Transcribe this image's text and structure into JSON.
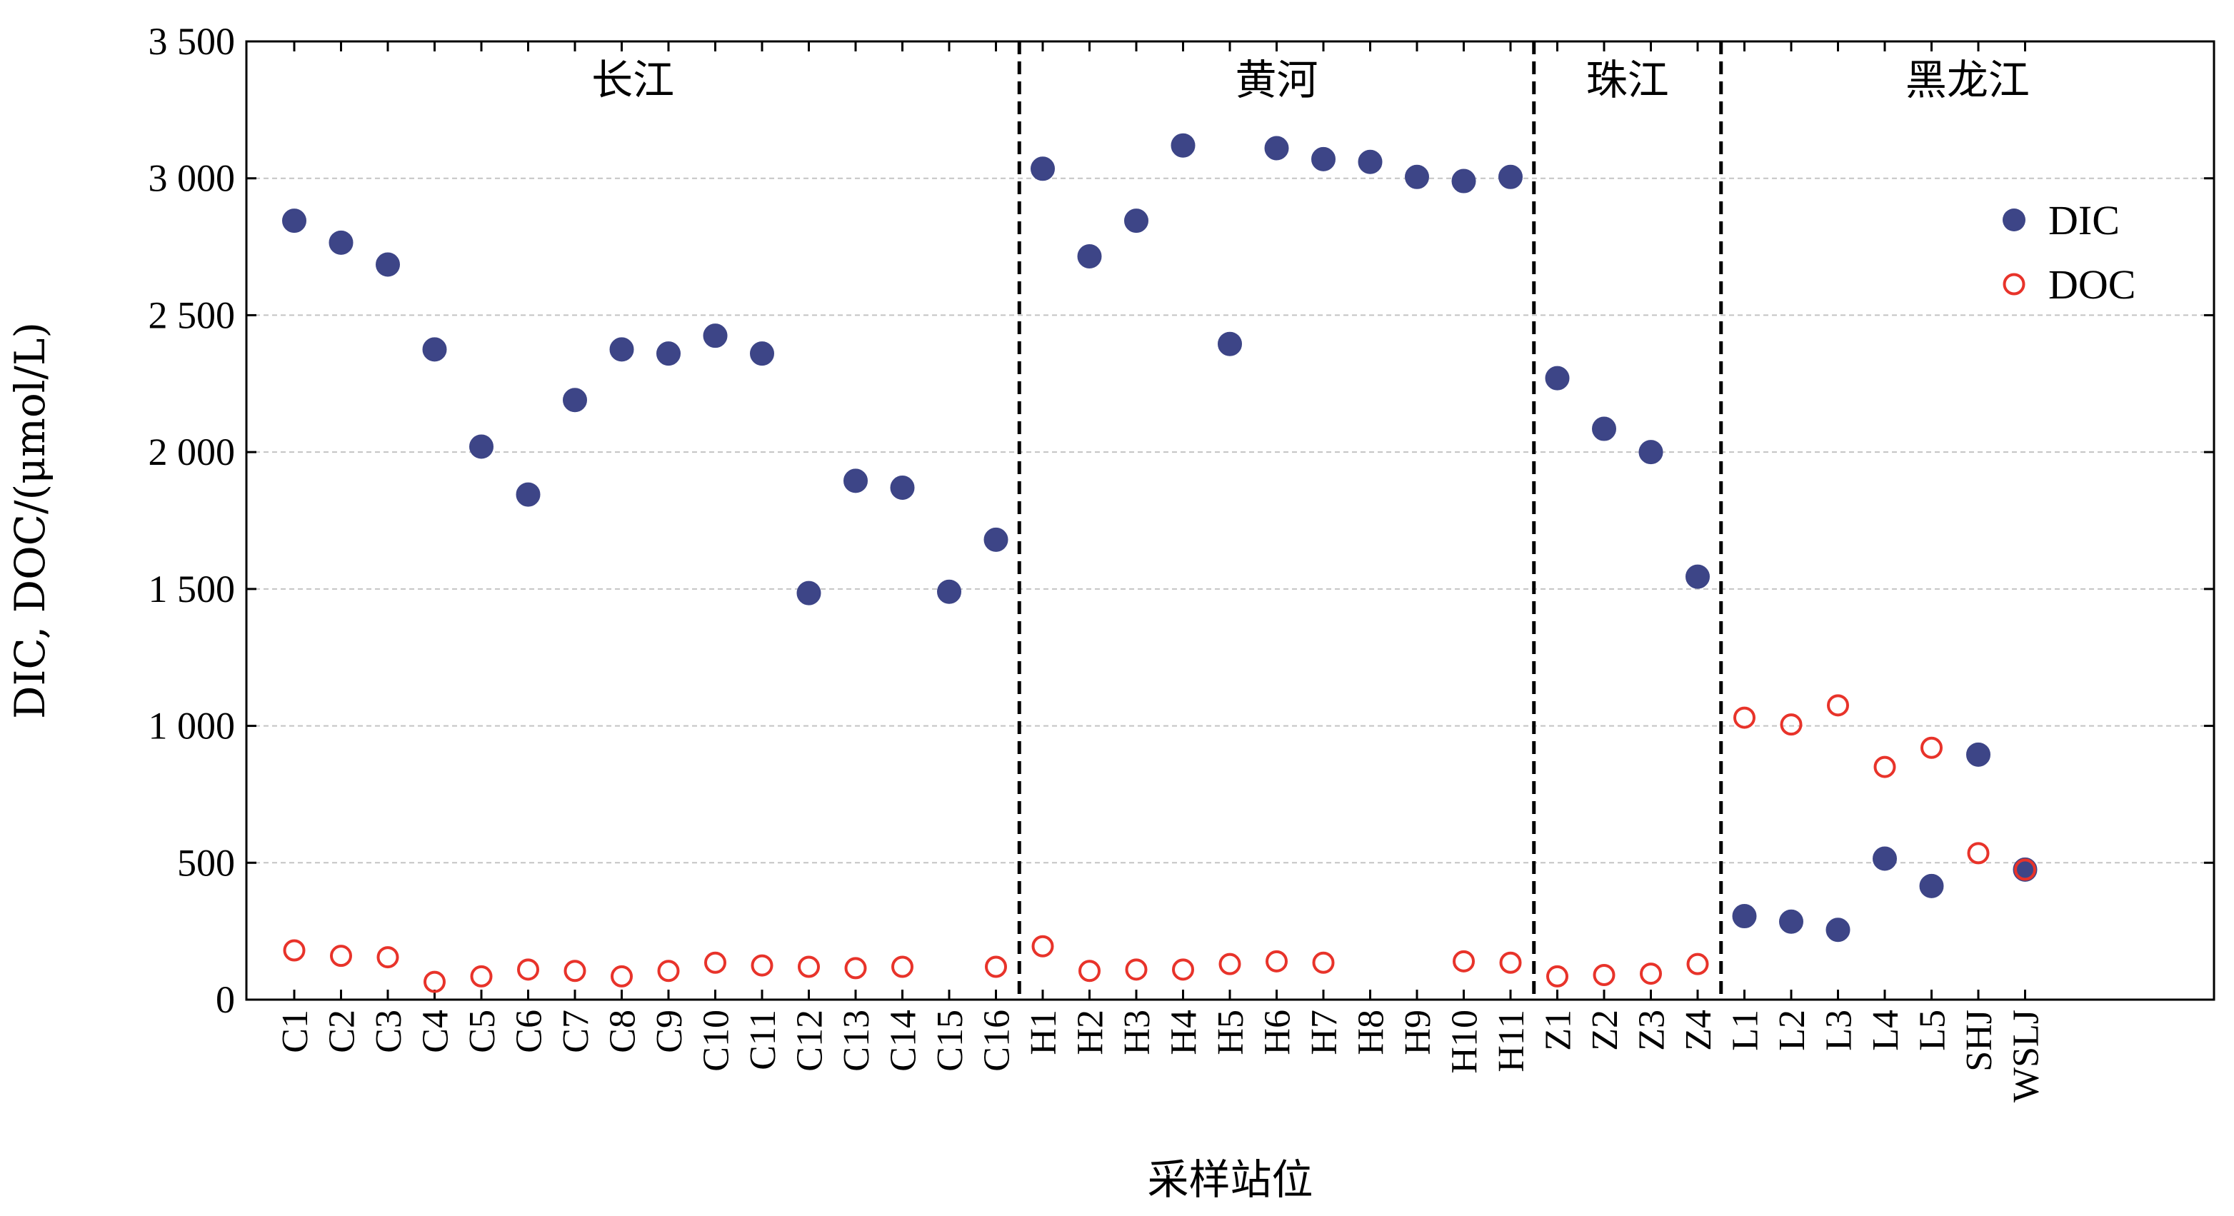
{
  "chart_data": {
    "type": "scatter",
    "xlabel": "采样站位",
    "ylabel": "DIC, DOC/(μmol/L)",
    "ylim": [
      0,
      3500
    ],
    "yticks": [
      0,
      500,
      1000,
      1500,
      2000,
      2500,
      3000,
      3500
    ],
    "ytick_labels": [
      "0",
      "500",
      "1 000",
      "1 500",
      "2 000",
      "2 500",
      "3 000",
      "3 500"
    ],
    "grid": "horizontal dashed",
    "legend_position": "top-right",
    "colors": {
      "DIC": "#3d4587",
      "DOC": "#e8332a"
    },
    "categories": [
      "C1",
      "C2",
      "C3",
      "C4",
      "C5",
      "C6",
      "C7",
      "C8",
      "C9",
      "C10",
      "C11",
      "C12",
      "C13",
      "C14",
      "C15",
      "C16",
      "H1",
      "H2",
      "H3",
      "H4",
      "H5",
      "H6",
      "H7",
      "H8",
      "H9",
      "H10",
      "H11",
      "Z1",
      "Z2",
      "Z3",
      "Z4",
      "L1",
      "L2",
      "L3",
      "L4",
      "L5",
      "SHJ",
      "WSLJ"
    ],
    "regions": [
      {
        "name": "长江",
        "start": 0,
        "end": 15
      },
      {
        "name": "黄河",
        "start": 16,
        "end": 26
      },
      {
        "name": "珠江",
        "start": 27,
        "end": 30
      },
      {
        "name": "黑龙江",
        "start": 31,
        "end": 37
      }
    ],
    "series": [
      {
        "name": "DIC",
        "marker": "filled-circle",
        "values": [
          2845,
          2765,
          2685,
          2375,
          2020,
          1845,
          2190,
          2375,
          2360,
          2425,
          2360,
          1485,
          1895,
          1870,
          1490,
          1680,
          3035,
          2715,
          2845,
          3120,
          2395,
          3110,
          3070,
          3060,
          3005,
          2990,
          3005,
          2270,
          2085,
          2000,
          1545,
          305,
          285,
          255,
          515,
          415,
          895,
          475
        ]
      },
      {
        "name": "DOC",
        "marker": "open-circle",
        "values": [
          180,
          160,
          155,
          65,
          85,
          110,
          105,
          85,
          105,
          135,
          125,
          120,
          115,
          120,
          null,
          120,
          195,
          105,
          110,
          110,
          130,
          140,
          135,
          null,
          null,
          140,
          135,
          85,
          90,
          95,
          130,
          1030,
          1005,
          1075,
          850,
          920,
          535,
          475
        ]
      }
    ]
  }
}
